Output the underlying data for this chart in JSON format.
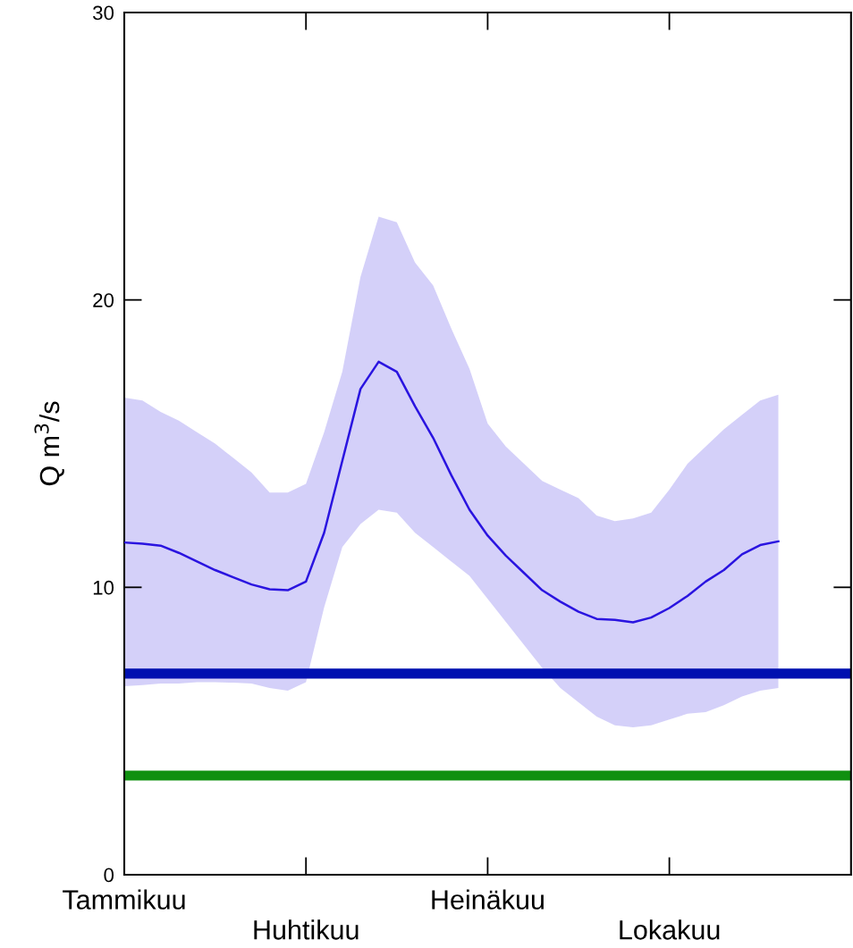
{
  "chart_data": {
    "type": "line",
    "ylabel": "Q m$^{3}$/s",
    "categories": [
      "Tammikuu",
      null,
      null,
      null,
      null,
      null,
      null,
      null,
      null,
      null,
      "Huhtikuu",
      null,
      null,
      null,
      null,
      null,
      null,
      null,
      null,
      null,
      "Heinäkuu",
      null,
      null,
      null,
      null,
      null,
      null,
      null,
      null,
      null,
      "Lokakuu",
      null,
      null,
      null,
      null,
      null,
      null,
      null,
      null,
      null,
      null
    ],
    "series": [
      {
        "color": "#2a14e0",
        "values": [
          11.56,
          11.52,
          11.45,
          11.2,
          10.9,
          10.6,
          10.35,
          10.1,
          9.93,
          9.9,
          10.2,
          11.9,
          14.4,
          16.9,
          17.85,
          17.5,
          16.3,
          15.2,
          13.9,
          12.7,
          11.8,
          11.1,
          10.5,
          9.9,
          9.5,
          9.15,
          8.9,
          8.87,
          8.78,
          8.95,
          9.28,
          9.7,
          10.2,
          10.6,
          11.15,
          11.47,
          11.6,
          null,
          null,
          null,
          null
        ],
        "upper": [
          16.6,
          16.5,
          16.1,
          15.8,
          15.4,
          15.0,
          14.5,
          14.0,
          13.3,
          13.3,
          13.6,
          15.4,
          17.5,
          20.8,
          22.9,
          22.7,
          21.3,
          20.5,
          19.0,
          17.6,
          15.7,
          14.9,
          14.3,
          13.7,
          13.4,
          13.1,
          12.5,
          12.3,
          12.4,
          12.6,
          13.4,
          14.3,
          14.9,
          15.5,
          16.0,
          16.5,
          16.7,
          null,
          null,
          null,
          null
        ],
        "lower": [
          6.56,
          6.6,
          6.65,
          6.65,
          6.7,
          6.7,
          6.68,
          6.65,
          6.5,
          6.4,
          6.7,
          9.3,
          11.4,
          12.2,
          12.7,
          12.6,
          11.9,
          11.4,
          10.9,
          10.4,
          9.6,
          8.8,
          8.0,
          7.2,
          6.5,
          6.0,
          5.5,
          5.2,
          5.13,
          5.2,
          5.4,
          5.6,
          5.66,
          5.9,
          6.2,
          6.4,
          6.5,
          null,
          null,
          null,
          null
        ]
      }
    ],
    "ref_lines": [
      {
        "axis": "y",
        "value": 7.0,
        "color": "#0010b0"
      },
      {
        "axis": "y",
        "value": 3.45,
        "color": "#109010"
      }
    ],
    "ylim": [
      0,
      30
    ],
    "yticks": [
      0,
      10,
      20,
      30
    ],
    "grid": false,
    "legend": false,
    "marker": "none",
    "line_style": "solid"
  }
}
